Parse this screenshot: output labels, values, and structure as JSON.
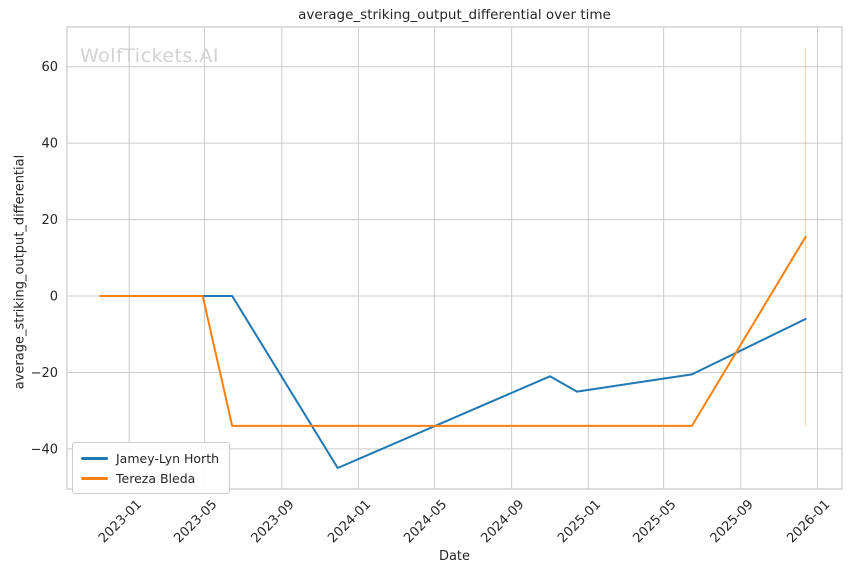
{
  "title": "average_striking_output_differential over time",
  "watermark": "WolfTickets.AI",
  "axes": {
    "x_label": "Date",
    "y_label": "average_striking_output_differential"
  },
  "legend": {
    "position": "lower left",
    "items": [
      {
        "label": "Jamey-Lyn Horth",
        "color": "#1f77b4"
      },
      {
        "label": "Tereza Bleda",
        "color": "#ff7f0e"
      }
    ]
  },
  "colors": {
    "grid": "#cccccc",
    "spine": "#c9c9c9",
    "text": "#262626",
    "watermark": "#d2d2d2",
    "series_blue": "#1f77b4",
    "series_orange": "#ff7f0e"
  },
  "chart_data": {
    "type": "line",
    "title": "average_striking_output_differential over time",
    "xlabel": "Date",
    "ylabel": "average_striking_output_differential",
    "grid": true,
    "legend_position": "lower left",
    "x_ticks": [
      "2023-01",
      "2023-05",
      "2023-09",
      "2024-01",
      "2024-05",
      "2024-09",
      "2025-01",
      "2025-05",
      "2025-09",
      "2026-01"
    ],
    "y_ticks": [
      60,
      40,
      20,
      0,
      -20,
      -40
    ],
    "xlim": [
      "2022-09-24",
      "2026-02-09"
    ],
    "ylim": [
      -50.5,
      70.4
    ],
    "series": [
      {
        "name": "Jamey-Lyn Horth",
        "color": "#1f77b4",
        "points": [
          [
            "2022-11-16",
            0
          ],
          [
            "2023-06-14",
            0
          ],
          [
            "2023-11-29",
            -45
          ],
          [
            "2024-11-01",
            -21
          ],
          [
            "2024-12-14",
            -25
          ],
          [
            "2025-06-15",
            -20.5
          ],
          [
            "2025-12-13",
            -6
          ]
        ]
      },
      {
        "name": "Tereza Bleda",
        "color": "#ff7f0e",
        "points": [
          [
            "2022-11-16",
            0
          ],
          [
            "2023-04-28",
            0
          ],
          [
            "2023-06-14",
            -34
          ],
          [
            "2025-06-15",
            -34
          ],
          [
            "2025-12-13",
            15.5
          ]
        ]
      }
    ],
    "annotations": [
      {
        "type": "vline_segment",
        "x": "2025-12-13",
        "y0": -34,
        "y1": 65,
        "color": "#ff7f0e",
        "opacity": 0.3
      }
    ]
  }
}
